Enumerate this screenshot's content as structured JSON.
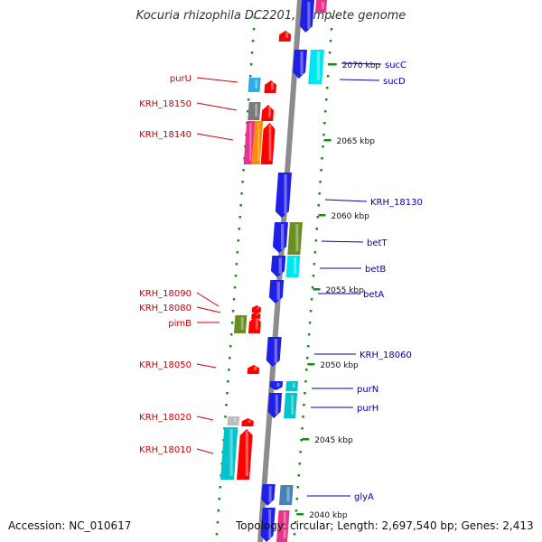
{
  "title": "Kocuria rhizophila DC2201, complete genome",
  "footer": {
    "accession": "Accession: NC_010617",
    "topology": "Topology: circular; Length: 2,697,540 bp; Genes: 2,413"
  },
  "colors": {
    "backbone": "#8c8c8c",
    "plus_strand_tick": "#1a8a1a",
    "left_label": "#cc0000",
    "right_label": "#0000aa"
  },
  "ticks": [
    {
      "label": "2070 kbp",
      "kbp": 2070
    },
    {
      "label": "2065 kbp",
      "kbp": 2065
    },
    {
      "label": "2060 kbp",
      "kbp": 2060
    },
    {
      "label": "2055 kbp",
      "kbp": 2055
    },
    {
      "label": "2050 kbp",
      "kbp": 2050
    },
    {
      "label": "2045 kbp",
      "kbp": 2045
    },
    {
      "label": "2040 kbp",
      "kbp": 2040
    }
  ],
  "genes_left": [
    {
      "name": "purU",
      "color": "#29aee6"
    },
    {
      "name": "KRH_18150",
      "color": "#7a7a7a"
    },
    {
      "name": "KRH_18140",
      "color": "#e8338c"
    },
    {
      "name": "KRH_18090",
      "color": "#ff0000"
    },
    {
      "name": "KRH_18080",
      "color": "#ff0000"
    },
    {
      "name": "pimB",
      "color": "#6b8e23"
    },
    {
      "name": "KRH_18050",
      "color": "#ff0000"
    },
    {
      "name": "KRH_18020",
      "color": "#bdbdbd"
    },
    {
      "name": "KRH_18010",
      "color": "#00c5cd"
    }
  ],
  "genes_right": [
    {
      "name": "sucC",
      "color": "#00e5ee"
    },
    {
      "name": "sucD",
      "color": "#1f1fe8"
    },
    {
      "name": "KRH_18130",
      "color": "#1f1fe8"
    },
    {
      "name": "betT",
      "color": "#6b8e23"
    },
    {
      "name": "betB",
      "color": "#00e5ee"
    },
    {
      "name": "betA",
      "color": "#1f1fe8"
    },
    {
      "name": "KRH_18060",
      "color": "#1f1fe8"
    },
    {
      "name": "purN",
      "color": "#1f1fe8"
    },
    {
      "name": "purH",
      "color": "#00c5cd"
    },
    {
      "name": "glyA",
      "color": "#4682b4"
    }
  ]
}
